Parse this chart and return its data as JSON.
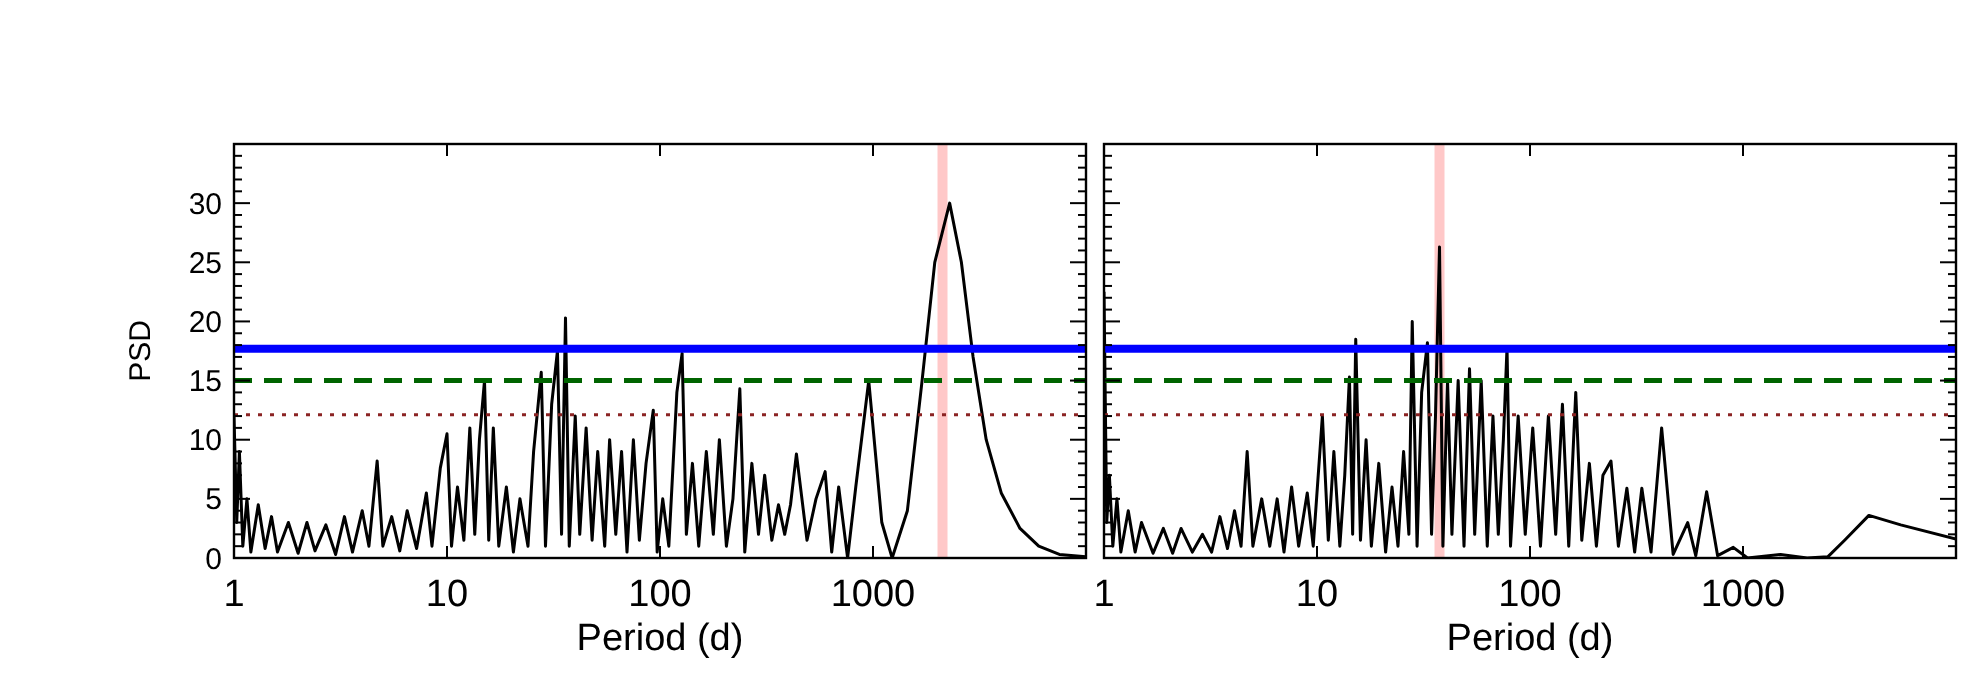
{
  "chart_data": [
    {
      "type": "line",
      "xlabel": "Period (d)",
      "ylabel": "PSD",
      "log": "x",
      "xlim": [
        1,
        10000
      ],
      "xticks": [
        1,
        10,
        100,
        1000
      ],
      "ylim": [
        0,
        35
      ],
      "yticks": [
        0,
        5,
        10,
        15,
        20,
        25,
        30
      ],
      "grid": false,
      "marker": "none",
      "line_style": "solid",
      "series": [
        {
          "color": "#000000",
          "x": [
            1,
            1.03,
            1.06,
            1.1,
            1.15,
            1.2,
            1.3,
            1.4,
            1.5,
            1.6,
            1.8,
            2,
            2.2,
            2.4,
            2.7,
            3,
            3.3,
            3.6,
            4,
            4.3,
            4.7,
            5,
            5.5,
            6,
            6.5,
            7.2,
            8,
            8.5,
            9.3,
            10,
            10.5,
            11.2,
            12,
            12.8,
            13.5,
            14.2,
            15,
            15.7,
            16.5,
            17.5,
            19,
            20.5,
            22,
            24,
            25.5,
            27.7,
            29,
            31,
            33,
            34.5,
            36,
            37.5,
            40,
            42,
            45,
            48,
            51,
            55,
            58,
            62,
            66,
            70,
            75,
            80,
            86,
            93,
            97,
            103,
            110,
            120,
            127,
            133,
            142,
            152,
            165,
            178,
            190,
            205,
            220,
            237,
            250,
            270,
            290,
            310,
            335,
            360,
            385,
            410,
            437,
            490,
            540,
            596,
            640,
            690,
            760,
            830,
            955,
            1100,
            1230,
            1450,
            1700,
            1950,
            2290,
            2600,
            2950,
            3400,
            4000,
            4900,
            6000,
            7500,
            10000
          ],
          "values": [
            12,
            3,
            9,
            1,
            5,
            0.5,
            4.5,
            0.8,
            3.5,
            0.5,
            3,
            0.4,
            3,
            0.6,
            2.8,
            0.3,
            3.5,
            0.5,
            4,
            1,
            8.2,
            1,
            3.5,
            0.6,
            4,
            0.8,
            5.5,
            1,
            7.6,
            10.5,
            1,
            6,
            1.5,
            11,
            2,
            10,
            15,
            1.5,
            11,
            1,
            6,
            0.5,
            5,
            1,
            9,
            15.7,
            1,
            13,
            17.5,
            2,
            20.3,
            1,
            12,
            2,
            11,
            1.5,
            9,
            1,
            10,
            2,
            9,
            0.5,
            10,
            1.5,
            8,
            12.5,
            0.5,
            5,
            1,
            14,
            17.3,
            2,
            8,
            1,
            9,
            2,
            10,
            1,
            5,
            14.3,
            0.5,
            8,
            2,
            7,
            1.5,
            4.5,
            2,
            4.5,
            8.8,
            1.5,
            5,
            7.3,
            0.5,
            6,
            0,
            6,
            15,
            3,
            0,
            4,
            15,
            25,
            30,
            25,
            17,
            10,
            5.5,
            2.5,
            1,
            0.3,
            0.1
          ]
        }
      ],
      "ref_lines": [
        {
          "axis": "y",
          "value": 17.7,
          "color": "#0000ff",
          "line_style": "solid"
        },
        {
          "axis": "y",
          "value": 15,
          "color": "#006400",
          "line_style": "dashed"
        },
        {
          "axis": "y",
          "value": 12.1,
          "color": "#8b2323",
          "line_style": "dotted"
        },
        {
          "axis": "x",
          "value": 2120,
          "color": "#ffc8c8",
          "line_style": "solid"
        }
      ]
    },
    {
      "type": "line",
      "xlabel": "Period (d)",
      "log": "x",
      "xlim": [
        1,
        10000
      ],
      "xticks": [
        1,
        10,
        100,
        1000
      ],
      "ylim": [
        0,
        35
      ],
      "yticks": [
        0,
        5,
        10,
        15,
        20,
        25,
        30
      ],
      "tick_labels": "x",
      "grid": false,
      "marker": "none",
      "line_style": "solid",
      "series": [
        {
          "color": "#000000",
          "x": [
            1,
            1.03,
            1.06,
            1.1,
            1.15,
            1.2,
            1.3,
            1.4,
            1.5,
            1.7,
            1.9,
            2.1,
            2.3,
            2.6,
            2.9,
            3.2,
            3.5,
            3.8,
            4.1,
            4.4,
            4.7,
            5,
            5.5,
            6,
            6.5,
            7,
            7.6,
            8.2,
            9,
            9.6,
            10.6,
            11.3,
            12,
            12.8,
            13.5,
            14.2,
            14.7,
            15.2,
            16,
            17,
            18,
            19.5,
            21,
            22.5,
            24,
            25.5,
            27,
            28,
            29.5,
            31,
            33,
            34.5,
            36,
            37.6,
            39,
            41,
            43,
            46,
            49,
            52,
            55,
            59,
            63,
            67,
            71,
            75,
            78,
            81,
            88,
            95,
            103,
            112,
            122,
            132,
            142,
            152,
            164,
            175,
            190,
            205,
            220,
            240,
            260,
            285,
            310,
            335,
            370,
            415,
            470,
            550,
            600,
            675,
            760,
            900,
            1050,
            1500,
            2000,
            2500,
            3000,
            3900,
            5500,
            10000
          ],
          "values": [
            22.5,
            3,
            7,
            1,
            5,
            0.5,
            4,
            0.5,
            3,
            0.4,
            2.5,
            0.4,
            2.5,
            0.5,
            2,
            0.5,
            3.5,
            0.8,
            4,
            1,
            9,
            1,
            5,
            1,
            5,
            0.5,
            6,
            1,
            5.5,
            1,
            12,
            1.5,
            9,
            1,
            7,
            15.3,
            2,
            18.5,
            1.5,
            10,
            1,
            8,
            0.5,
            6,
            1,
            9,
            2,
            20,
            1,
            14,
            18.2,
            2,
            12,
            26.3,
            1,
            15,
            2,
            15,
            1,
            16,
            2,
            15,
            1,
            12,
            2,
            10,
            17.8,
            1,
            12,
            2,
            11,
            1,
            12,
            2,
            13,
            1,
            14,
            1.5,
            8,
            1,
            7,
            8.2,
            1,
            5.9,
            0.5,
            5.9,
            0.5,
            11,
            0.3,
            3,
            0.2,
            5.6,
            0.2,
            0.9,
            0,
            0.3,
            0,
            0.1,
            1.5,
            3.6,
            2.8,
            1.6
          ]
        }
      ],
      "ref_lines": [
        {
          "axis": "y",
          "value": 17.7,
          "color": "#0000ff",
          "line_style": "solid"
        },
        {
          "axis": "y",
          "value": 15,
          "color": "#006400",
          "line_style": "dashed"
        },
        {
          "axis": "y",
          "value": 12.1,
          "color": "#8b2323",
          "line_style": "dotted"
        },
        {
          "axis": "x",
          "value": 37.6,
          "color": "#ffc8c8",
          "line_style": "solid"
        }
      ]
    }
  ]
}
